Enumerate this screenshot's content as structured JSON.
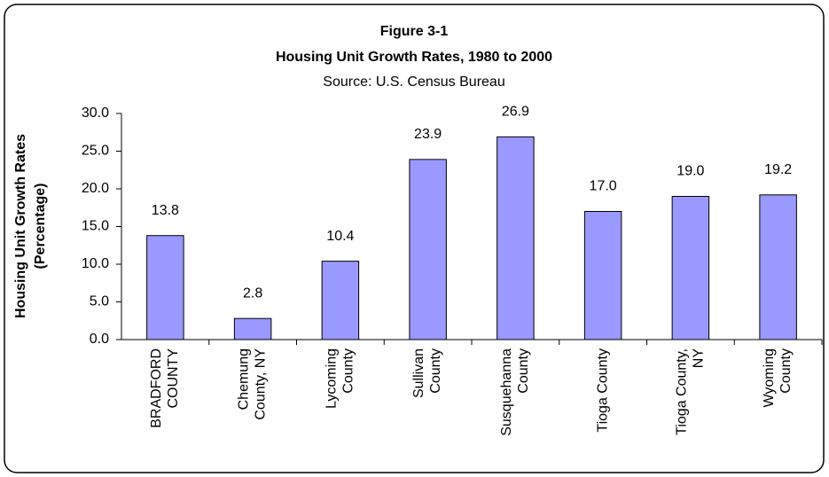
{
  "chart_data": {
    "type": "bar",
    "title": [
      "Figure 3-1",
      "Housing Unit Growth Rates, 1980 to 2000"
    ],
    "subtitle": "Source: U.S. Census Bureau",
    "y_label": [
      "Housing Unit Growth Rates",
      "(Percentage)"
    ],
    "categories": [
      "BRADFORD\nCOUNTY",
      "Chemung\nCounty, NY",
      "Lycoming\nCounty",
      "Sullivan\nCounty",
      "Susquehanna\nCounty",
      "Tioga County",
      "Tioga County,\nNY",
      "Wyoming\nCounty"
    ],
    "values": [
      13.8,
      2.8,
      10.4,
      23.9,
      26.9,
      17.0,
      19.0,
      19.2
    ],
    "value_labels": [
      "13.8",
      "2.8",
      "10.4",
      "23.9",
      "26.9",
      "17.0",
      "19.0",
      "19.2"
    ],
    "color": "#9999ff",
    "ylim": [
      0,
      30
    ],
    "yticks": [
      {
        "value": 0,
        "label": "0.0"
      },
      {
        "value": 5,
        "label": "5.0"
      },
      {
        "value": 10,
        "label": "10.0"
      },
      {
        "value": 15,
        "label": "15.0"
      },
      {
        "value": 20,
        "label": "20.0"
      },
      {
        "value": 25,
        "label": "25.0"
      },
      {
        "value": 30,
        "label": "30.0"
      }
    ],
    "grid": false
  }
}
